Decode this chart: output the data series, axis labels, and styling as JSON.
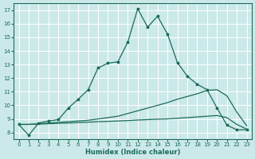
{
  "xlabel": "Humidex (Indice chaleur)",
  "bg_color": "#cce9e9",
  "grid_color": "#ffffff",
  "line_color": "#1a6b5a",
  "xlim": [
    -0.5,
    23.5
  ],
  "ylim": [
    7.5,
    17.5
  ],
  "xticks": [
    0,
    1,
    2,
    3,
    4,
    5,
    6,
    7,
    8,
    9,
    10,
    11,
    12,
    13,
    14,
    15,
    16,
    17,
    18,
    19,
    20,
    21,
    22,
    23
  ],
  "yticks": [
    8,
    9,
    10,
    11,
    12,
    13,
    14,
    15,
    16,
    17
  ],
  "line1_x": [
    0,
    1,
    2,
    3,
    4,
    5,
    6,
    7,
    8,
    9,
    10,
    11,
    12,
    13,
    14,
    15,
    16,
    17,
    18,
    19,
    20,
    21,
    22,
    23
  ],
  "line1_y": [
    8.6,
    7.8,
    8.7,
    8.85,
    8.95,
    9.8,
    10.45,
    11.15,
    12.75,
    13.1,
    13.2,
    14.65,
    17.1,
    15.75,
    16.55,
    15.25,
    13.15,
    12.15,
    11.55,
    11.15,
    9.8,
    8.55,
    8.2,
    8.2
  ],
  "line2_x": [
    0,
    1,
    2,
    3,
    4,
    5,
    6,
    7,
    8,
    9,
    10,
    11,
    12,
    13,
    14,
    15,
    16,
    17,
    18,
    19,
    20,
    21,
    22,
    23
  ],
  "line2_y": [
    8.6,
    8.6,
    8.65,
    8.7,
    8.75,
    8.8,
    8.85,
    8.9,
    9.0,
    9.1,
    9.2,
    9.4,
    9.6,
    9.8,
    10.0,
    10.2,
    10.45,
    10.65,
    10.85,
    11.1,
    11.15,
    10.7,
    9.5,
    8.5
  ],
  "line3_x": [
    0,
    1,
    2,
    3,
    4,
    5,
    6,
    7,
    8,
    9,
    10,
    11,
    12,
    13,
    14,
    15,
    16,
    17,
    18,
    19,
    20,
    21,
    22,
    23
  ],
  "line3_y": [
    8.6,
    8.6,
    8.62,
    8.65,
    8.68,
    8.7,
    8.73,
    8.76,
    8.8,
    8.82,
    8.85,
    8.88,
    8.92,
    8.95,
    8.98,
    9.0,
    9.05,
    9.1,
    9.15,
    9.2,
    9.25,
    9.1,
    8.6,
    8.25
  ]
}
